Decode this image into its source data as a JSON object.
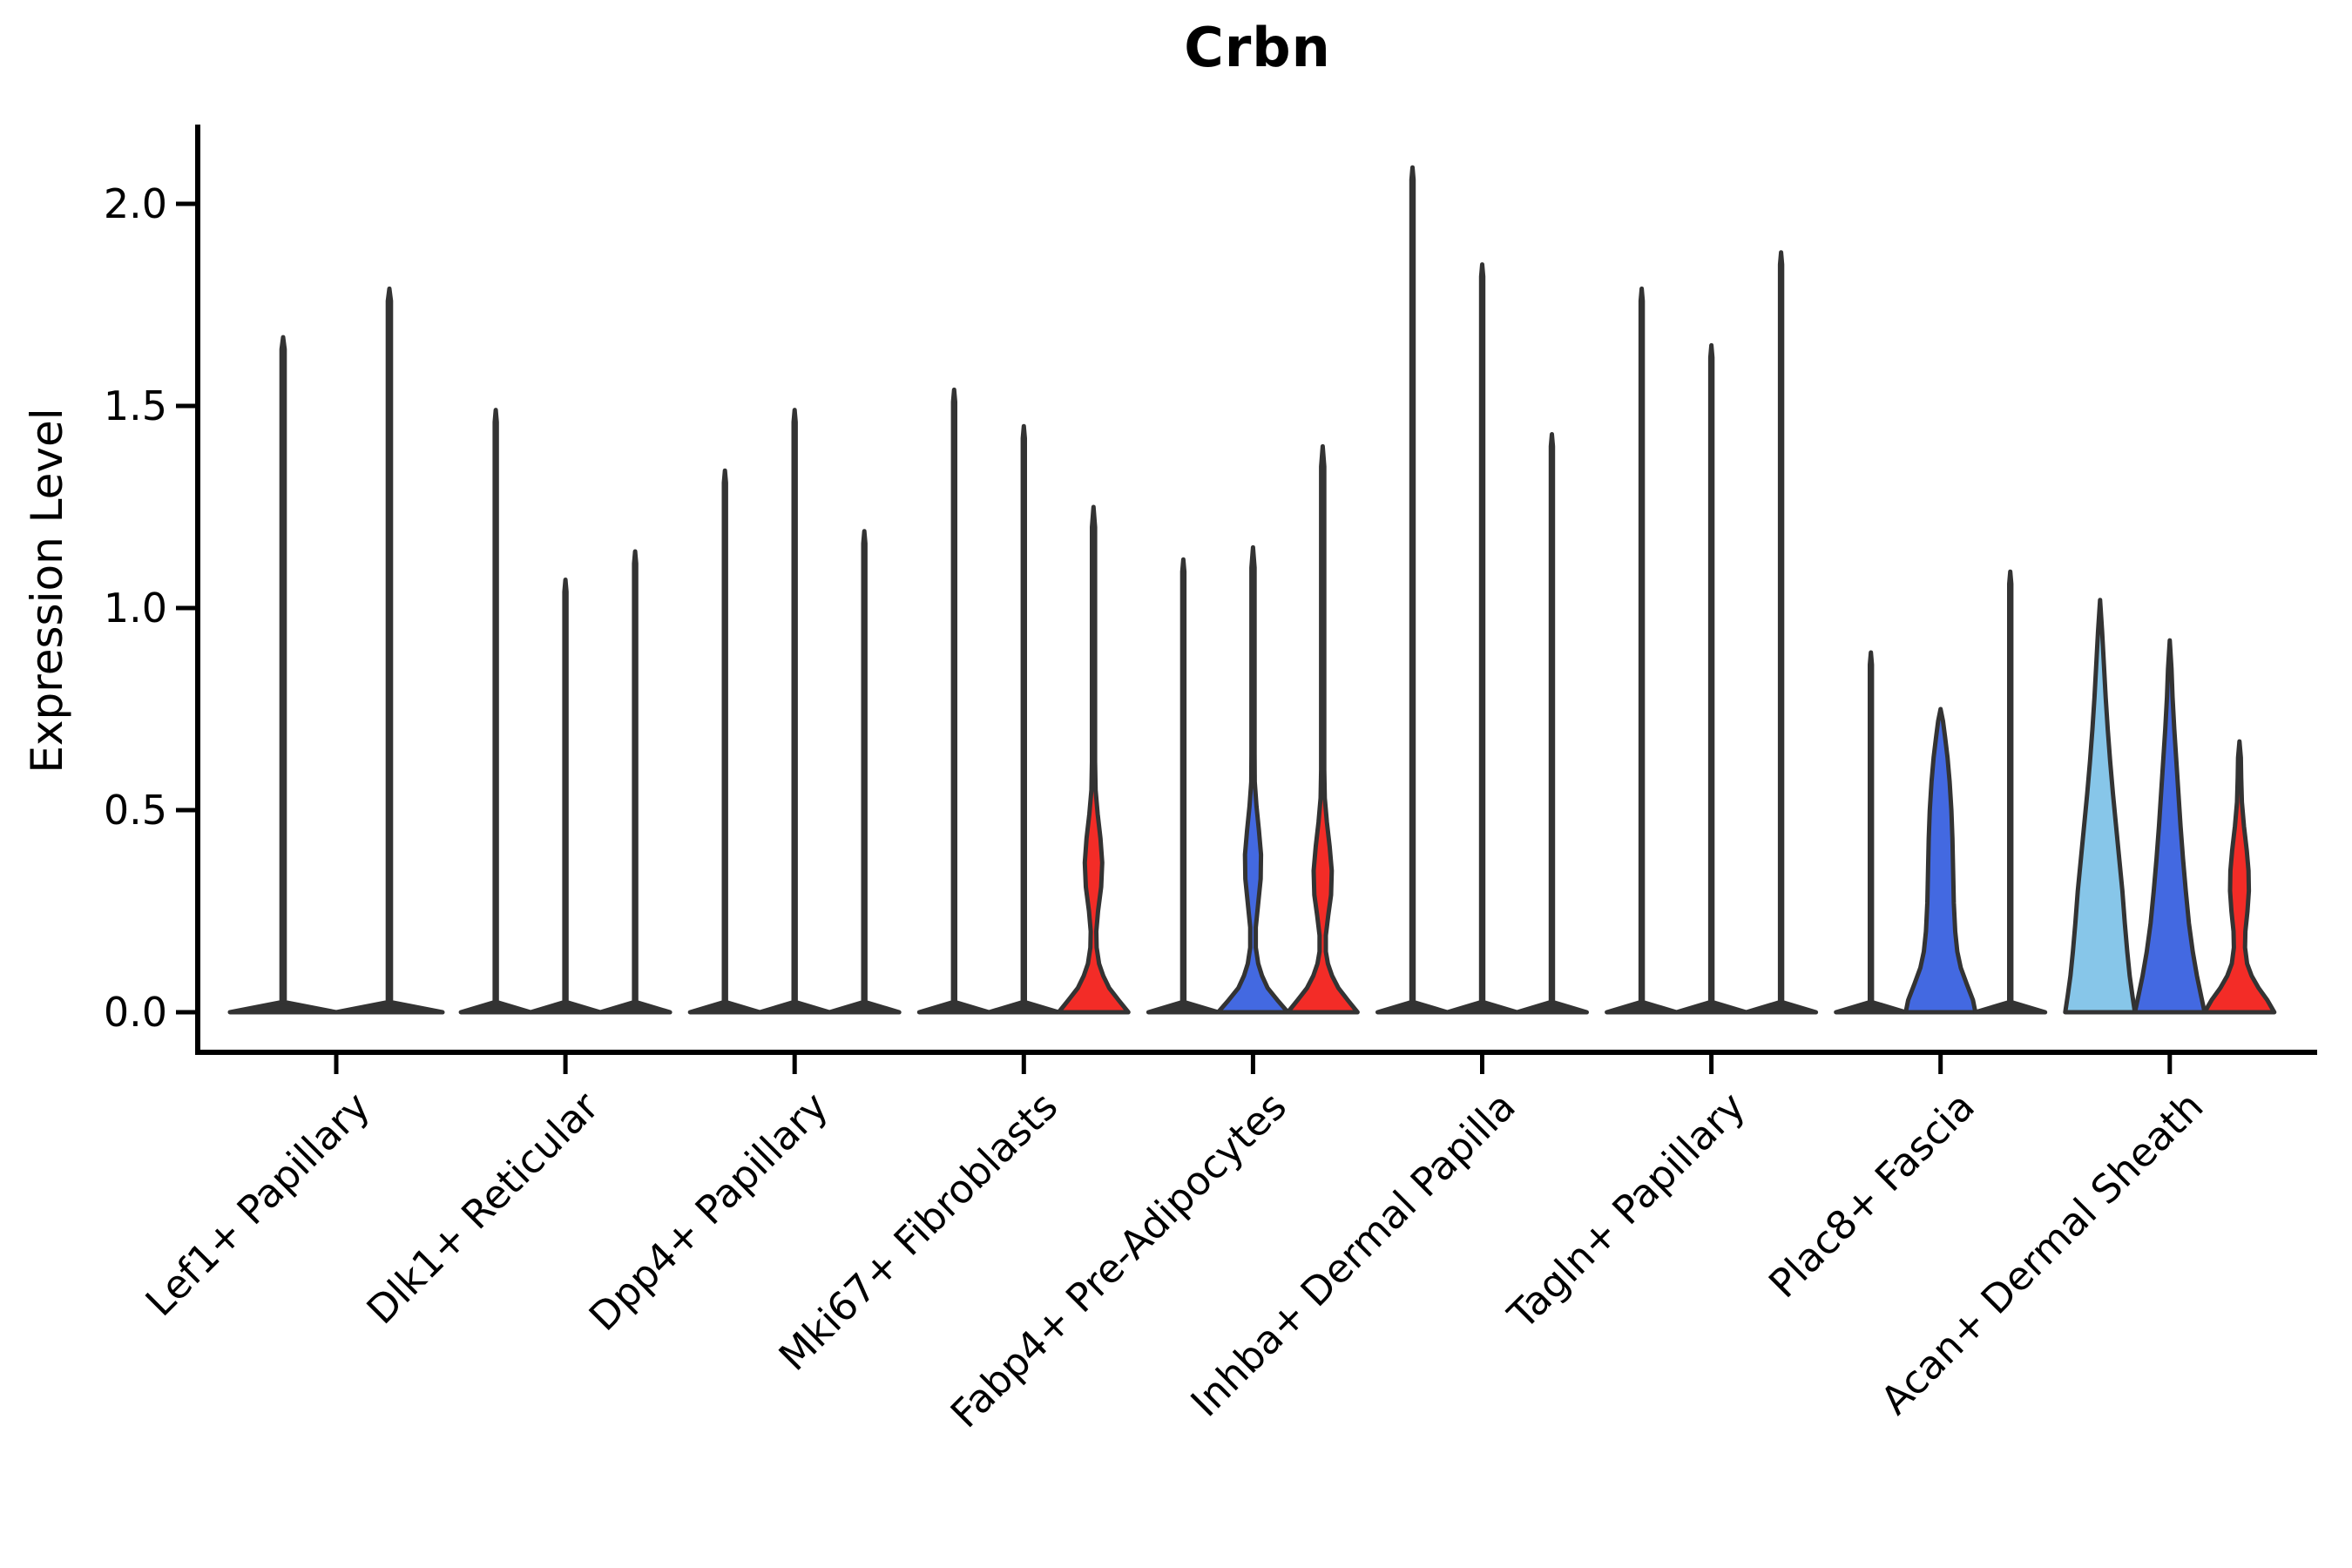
{
  "chart_data": {
    "type": "violin",
    "title": "Crbn",
    "ylabel": "Expression Level",
    "xlabel": "",
    "ylim": [
      -0.1,
      2.19
    ],
    "yticks": [
      0,
      0.5,
      1.0,
      1.5,
      2.0
    ],
    "ytick_labels": [
      "0.0",
      "0.5",
      "1.0",
      "1.5",
      "2.0"
    ],
    "grid": false,
    "legend": null,
    "colors": {
      "skyblue": "#87C6E9",
      "blue": "#4369E1",
      "red": "#F32C27",
      "outline": "#333333"
    },
    "categories": [
      "Lef1+ Papillary",
      "Dlk1+ Reticular",
      "Dpp4+ Papillary",
      "Mki67+ Fibroblasts",
      "Fabp4+ Pre-Adipocytes",
      "Inhba+ Dermal Papilla",
      "Tagln+ Papillary",
      "Plac8+ Fascia",
      "Acan+ Dermal Sheath"
    ],
    "groups": [
      {
        "label": "Lef1+ Papillary",
        "violins": [
          {
            "max": 1.67,
            "fill": null,
            "profile": null
          },
          {
            "max": 1.79,
            "fill": null,
            "profile": null
          }
        ]
      },
      {
        "label": "Dlk1+ Reticular",
        "violins": [
          {
            "max": 1.49,
            "fill": null,
            "profile": null
          },
          {
            "max": 1.07,
            "fill": null,
            "profile": null
          },
          {
            "max": 1.14,
            "fill": null,
            "profile": null
          }
        ]
      },
      {
        "label": "Dpp4+ Papillary",
        "violins": [
          {
            "max": 1.34,
            "fill": null,
            "profile": null
          },
          {
            "max": 1.49,
            "fill": null,
            "profile": null
          },
          {
            "max": 1.19,
            "fill": null,
            "profile": null
          }
        ]
      },
      {
        "label": "Mki67+ Fibroblasts",
        "violins": [
          {
            "max": 1.54,
            "fill": null,
            "profile": null
          },
          {
            "max": 1.45,
            "fill": null,
            "profile": null
          },
          {
            "max": 1.25,
            "fill": "#F32C27",
            "profile": [
              [
                0,
                1.0
              ],
              [
                0.03,
                0.72
              ],
              [
                0.06,
                0.45
              ],
              [
                0.09,
                0.28
              ],
              [
                0.12,
                0.16
              ],
              [
                0.16,
                0.09
              ],
              [
                0.2,
                0.08
              ],
              [
                0.25,
                0.13
              ],
              [
                0.31,
                0.22
              ],
              [
                0.37,
                0.25
              ],
              [
                0.43,
                0.2
              ],
              [
                0.49,
                0.12
              ],
              [
                0.55,
                0.06
              ],
              [
                0.62,
                0.045
              ],
              [
                1.2,
                0.045
              ],
              [
                1.25,
                0
              ]
            ]
          }
        ]
      },
      {
        "label": "Fabp4+ Pre-Adipocytes",
        "violins": [
          {
            "max": 1.12,
            "fill": null,
            "profile": null
          },
          {
            "max": 1.15,
            "fill": "#4369E1",
            "profile": [
              [
                0,
                1.0
              ],
              [
                0.03,
                0.7
              ],
              [
                0.06,
                0.42
              ],
              [
                0.09,
                0.26
              ],
              [
                0.12,
                0.15
              ],
              [
                0.16,
                0.08
              ],
              [
                0.21,
                0.08
              ],
              [
                0.27,
                0.15
              ],
              [
                0.33,
                0.22
              ],
              [
                0.39,
                0.23
              ],
              [
                0.45,
                0.17
              ],
              [
                0.51,
                0.1
              ],
              [
                0.57,
                0.05
              ],
              [
                0.64,
                0.045
              ],
              [
                1.1,
                0.045
              ],
              [
                1.15,
                0
              ]
            ]
          },
          {
            "max": 1.4,
            "fill": "#F32C27",
            "profile": [
              [
                0,
                1.0
              ],
              [
                0.03,
                0.72
              ],
              [
                0.06,
                0.45
              ],
              [
                0.09,
                0.27
              ],
              [
                0.12,
                0.15
              ],
              [
                0.15,
                0.09
              ],
              [
                0.19,
                0.09
              ],
              [
                0.24,
                0.16
              ],
              [
                0.29,
                0.24
              ],
              [
                0.35,
                0.26
              ],
              [
                0.41,
                0.2
              ],
              [
                0.47,
                0.12
              ],
              [
                0.53,
                0.06
              ],
              [
                0.6,
                0.045
              ],
              [
                1.35,
                0.045
              ],
              [
                1.4,
                0
              ]
            ]
          }
        ]
      },
      {
        "label": "Inhba+ Dermal Papilla",
        "violins": [
          {
            "max": 2.09,
            "fill": null,
            "profile": null
          },
          {
            "max": 1.85,
            "fill": null,
            "profile": null
          },
          {
            "max": 1.43,
            "fill": null,
            "profile": null
          }
        ]
      },
      {
        "label": "Tagln+ Papillary",
        "violins": [
          {
            "max": 1.79,
            "fill": null,
            "profile": null
          },
          {
            "max": 1.65,
            "fill": null,
            "profile": null
          },
          {
            "max": 1.88,
            "fill": null,
            "profile": null
          }
        ]
      },
      {
        "label": "Plac8+ Fascia",
        "violins": [
          {
            "max": 0.89,
            "fill": null,
            "profile": null
          },
          {
            "max": 0.75,
            "fill": "#4369E1",
            "profile": [
              [
                0,
                1.0
              ],
              [
                0.03,
                0.93
              ],
              [
                0.07,
                0.75
              ],
              [
                0.11,
                0.58
              ],
              [
                0.15,
                0.48
              ],
              [
                0.2,
                0.42
              ],
              [
                0.27,
                0.38
              ],
              [
                0.35,
                0.36
              ],
              [
                0.43,
                0.34
              ],
              [
                0.5,
                0.31
              ],
              [
                0.57,
                0.26
              ],
              [
                0.63,
                0.2
              ],
              [
                0.68,
                0.13
              ],
              [
                0.72,
                0.07
              ],
              [
                0.75,
                0
              ]
            ]
          },
          {
            "max": 1.09,
            "fill": null,
            "profile": null
          }
        ]
      },
      {
        "label": "Acan+ Dermal Sheath",
        "violins": [
          {
            "max": 1.02,
            "fill": "#87C6E9",
            "profile": [
              [
                0,
                1.0
              ],
              [
                0.04,
                0.93
              ],
              [
                0.09,
                0.85
              ],
              [
                0.15,
                0.78
              ],
              [
                0.22,
                0.71
              ],
              [
                0.3,
                0.64
              ],
              [
                0.38,
                0.55
              ],
              [
                0.46,
                0.46
              ],
              [
                0.54,
                0.37
              ],
              [
                0.62,
                0.29
              ],
              [
                0.7,
                0.22
              ],
              [
                0.78,
                0.16
              ],
              [
                0.86,
                0.11
              ],
              [
                0.94,
                0.06
              ],
              [
                1.02,
                0
              ]
            ]
          },
          {
            "max": 0.92,
            "fill": "#4369E1",
            "profile": [
              [
                0,
                1.0
              ],
              [
                0.04,
                0.9
              ],
              [
                0.09,
                0.78
              ],
              [
                0.15,
                0.66
              ],
              [
                0.22,
                0.55
              ],
              [
                0.3,
                0.46
              ],
              [
                0.38,
                0.38
              ],
              [
                0.46,
                0.31
              ],
              [
                0.54,
                0.25
              ],
              [
                0.62,
                0.19
              ],
              [
                0.7,
                0.13
              ],
              [
                0.78,
                0.08
              ],
              [
                0.85,
                0.05
              ],
              [
                0.92,
                0
              ]
            ]
          },
          {
            "max": 0.67,
            "fill": "#F32C27",
            "profile": [
              [
                0,
                1.0
              ],
              [
                0.03,
                0.8
              ],
              [
                0.06,
                0.55
              ],
              [
                0.09,
                0.35
              ],
              [
                0.12,
                0.22
              ],
              [
                0.16,
                0.16
              ],
              [
                0.2,
                0.17
              ],
              [
                0.25,
                0.23
              ],
              [
                0.3,
                0.27
              ],
              [
                0.35,
                0.26
              ],
              [
                0.4,
                0.21
              ],
              [
                0.46,
                0.13
              ],
              [
                0.52,
                0.07
              ],
              [
                0.58,
                0.05
              ],
              [
                0.63,
                0.04
              ],
              [
                0.67,
                0
              ]
            ]
          }
        ]
      }
    ]
  }
}
